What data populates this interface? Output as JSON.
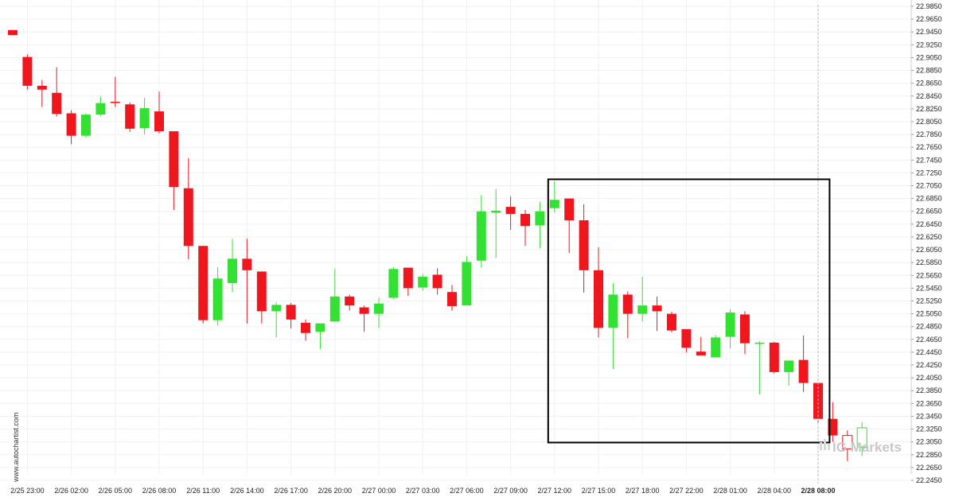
{
  "chart_data": {
    "type": "candlestick",
    "title": "",
    "xlabel": "",
    "ylabel": "",
    "ylim": [
      22.245,
      22.985
    ],
    "y_ticks": [
      "22.9850",
      "22.9650",
      "22.9450",
      "22.9250",
      "22.9050",
      "22.8850",
      "22.8650",
      "22.8450",
      "22.8250",
      "22.8050",
      "22.7850",
      "22.7650",
      "22.7450",
      "22.7250",
      "22.7050",
      "22.6850",
      "22.6650",
      "22.6450",
      "22.6250",
      "22.6050",
      "22.5850",
      "22.5650",
      "22.5450",
      "22.5250",
      "22.5050",
      "22.4850",
      "22.4650",
      "22.4450",
      "22.4250",
      "22.4050",
      "22.3850",
      "22.3650",
      "22.3450",
      "22.3250",
      "22.3050",
      "22.2850",
      "22.2650",
      "22.2450"
    ],
    "x_ticks": [
      {
        "label": "2/25 23:00",
        "bar": 1
      },
      {
        "label": "2/26 02:00",
        "bar": 4
      },
      {
        "label": "2/26 05:00",
        "bar": 7
      },
      {
        "label": "2/26 08:00",
        "bar": 10
      },
      {
        "label": "2/26 11:00",
        "bar": 13
      },
      {
        "label": "2/26 14:00",
        "bar": 16
      },
      {
        "label": "2/26 17:00",
        "bar": 19
      },
      {
        "label": "2/26 20:00",
        "bar": 22
      },
      {
        "label": "2/27 00:00",
        "bar": 25
      },
      {
        "label": "2/27 03:00",
        "bar": 28
      },
      {
        "label": "2/27 06:00",
        "bar": 31
      },
      {
        "label": "2/27 09:00",
        "bar": 34
      },
      {
        "label": "2/27 12:00",
        "bar": 37
      },
      {
        "label": "2/27 15:00",
        "bar": 40
      },
      {
        "label": "2/27 18:00",
        "bar": 43
      },
      {
        "label": "2/27 22:00",
        "bar": 46
      },
      {
        "label": "2/28 01:00",
        "bar": 49
      },
      {
        "label": "2/28 04:00",
        "bar": 52
      },
      {
        "label": "2/28 08:00",
        "bar": 55,
        "bold": true
      }
    ],
    "candles": [
      {
        "o": 22.948,
        "h": 22.948,
        "l": 22.94,
        "c": 22.94
      },
      {
        "o": 22.906,
        "h": 22.91,
        "l": 22.855,
        "c": 22.861
      },
      {
        "o": 22.861,
        "h": 22.87,
        "l": 22.828,
        "c": 22.855
      },
      {
        "o": 22.85,
        "h": 22.89,
        "l": 22.813,
        "c": 22.817
      },
      {
        "o": 22.818,
        "h": 22.823,
        "l": 22.77,
        "c": 22.783
      },
      {
        "o": 22.783,
        "h": 22.818,
        "l": 22.78,
        "c": 22.816
      },
      {
        "o": 22.816,
        "h": 22.845,
        "l": 22.814,
        "c": 22.834
      },
      {
        "o": 22.836,
        "h": 22.875,
        "l": 22.828,
        "c": 22.835
      },
      {
        "o": 22.832,
        "h": 22.835,
        "l": 22.789,
        "c": 22.794
      },
      {
        "o": 22.795,
        "h": 22.842,
        "l": 22.785,
        "c": 22.826
      },
      {
        "o": 22.821,
        "h": 22.852,
        "l": 22.787,
        "c": 22.79
      },
      {
        "o": 22.79,
        "h": 22.79,
        "l": 22.667,
        "c": 22.703
      },
      {
        "o": 22.701,
        "h": 22.748,
        "l": 22.59,
        "c": 22.611
      },
      {
        "o": 22.611,
        "h": 22.611,
        "l": 22.49,
        "c": 22.495
      },
      {
        "o": 22.495,
        "h": 22.578,
        "l": 22.487,
        "c": 22.56
      },
      {
        "o": 22.553,
        "h": 22.622,
        "l": 22.539,
        "c": 22.591
      },
      {
        "o": 22.591,
        "h": 22.622,
        "l": 22.49,
        "c": 22.573
      },
      {
        "o": 22.571,
        "h": 22.571,
        "l": 22.49,
        "c": 22.509
      },
      {
        "o": 22.509,
        "h": 22.523,
        "l": 22.468,
        "c": 22.519
      },
      {
        "o": 22.519,
        "h": 22.522,
        "l": 22.482,
        "c": 22.496
      },
      {
        "o": 22.491,
        "h": 22.496,
        "l": 22.463,
        "c": 22.475
      },
      {
        "o": 22.477,
        "h": 22.49,
        "l": 22.45,
        "c": 22.49
      },
      {
        "o": 22.493,
        "h": 22.575,
        "l": 22.493,
        "c": 22.532
      },
      {
        "o": 22.532,
        "h": 22.535,
        "l": 22.51,
        "c": 22.518
      },
      {
        "o": 22.515,
        "h": 22.518,
        "l": 22.477,
        "c": 22.505
      },
      {
        "o": 22.505,
        "h": 22.53,
        "l": 22.483,
        "c": 22.521
      },
      {
        "o": 22.53,
        "h": 22.578,
        "l": 22.528,
        "c": 22.575
      },
      {
        "o": 22.577,
        "h": 22.577,
        "l": 22.533,
        "c": 22.545
      },
      {
        "o": 22.546,
        "h": 22.567,
        "l": 22.541,
        "c": 22.563
      },
      {
        "o": 22.566,
        "h": 22.576,
        "l": 22.535,
        "c": 22.545
      },
      {
        "o": 22.539,
        "h": 22.55,
        "l": 22.51,
        "c": 22.517
      },
      {
        "o": 22.518,
        "h": 22.595,
        "l": 22.518,
        "c": 22.586
      },
      {
        "o": 22.588,
        "h": 22.69,
        "l": 22.577,
        "c": 22.665
      },
      {
        "o": 22.663,
        "h": 22.7,
        "l": 22.592,
        "c": 22.666
      },
      {
        "o": 22.672,
        "h": 22.688,
        "l": 22.636,
        "c": 22.661
      },
      {
        "o": 22.661,
        "h": 22.667,
        "l": 22.611,
        "c": 22.642
      },
      {
        "o": 22.643,
        "h": 22.68,
        "l": 22.607,
        "c": 22.665
      },
      {
        "o": 22.67,
        "h": 22.712,
        "l": 22.663,
        "c": 22.683
      },
      {
        "o": 22.685,
        "h": 22.685,
        "l": 22.6,
        "c": 22.651
      },
      {
        "o": 22.651,
        "h": 22.676,
        "l": 22.538,
        "c": 22.573
      },
      {
        "o": 22.573,
        "h": 22.609,
        "l": 22.468,
        "c": 22.483
      },
      {
        "o": 22.483,
        "h": 22.553,
        "l": 22.419,
        "c": 22.535
      },
      {
        "o": 22.535,
        "h": 22.54,
        "l": 22.467,
        "c": 22.505
      },
      {
        "o": 22.505,
        "h": 22.563,
        "l": 22.493,
        "c": 22.518
      },
      {
        "o": 22.518,
        "h": 22.532,
        "l": 22.478,
        "c": 22.509
      },
      {
        "o": 22.505,
        "h": 22.508,
        "l": 22.476,
        "c": 22.479
      },
      {
        "o": 22.481,
        "h": 22.481,
        "l": 22.445,
        "c": 22.452
      },
      {
        "o": 22.446,
        "h": 22.469,
        "l": 22.44,
        "c": 22.44
      },
      {
        "o": 22.437,
        "h": 22.472,
        "l": 22.437,
        "c": 22.468
      },
      {
        "o": 22.469,
        "h": 22.512,
        "l": 22.451,
        "c": 22.507
      },
      {
        "o": 22.504,
        "h": 22.509,
        "l": 22.442,
        "c": 22.459
      },
      {
        "o": 22.458,
        "h": 22.462,
        "l": 22.379,
        "c": 22.46
      },
      {
        "o": 22.46,
        "h": 22.461,
        "l": 22.412,
        "c": 22.414
      },
      {
        "o": 22.414,
        "h": 22.432,
        "l": 22.393,
        "c": 22.432
      },
      {
        "o": 22.433,
        "h": 22.471,
        "l": 22.383,
        "c": 22.397
      },
      {
        "o": 22.397,
        "h": 22.397,
        "l": 22.335,
        "c": 22.341
      },
      {
        "o": 22.341,
        "h": 22.367,
        "l": 22.305,
        "c": 22.315
      }
    ],
    "pending_candles": [
      {
        "o": 22.315,
        "h": 22.323,
        "l": 22.275,
        "c": 22.294
      },
      {
        "o": 22.297,
        "h": 22.336,
        "l": 22.283,
        "c": 22.327
      }
    ],
    "pattern_box": {
      "bar_start": 37,
      "bar_end": 56,
      "high": 22.715,
      "low": 22.304
    },
    "current_time_bar": 55,
    "colors": {
      "up": "#33e133",
      "down": "#f0161e",
      "wick": "#444444",
      "box": "#000000",
      "grid": "#f0f0f0"
    }
  },
  "watermark": "www.autochartist.com",
  "logo": "IG Markets"
}
